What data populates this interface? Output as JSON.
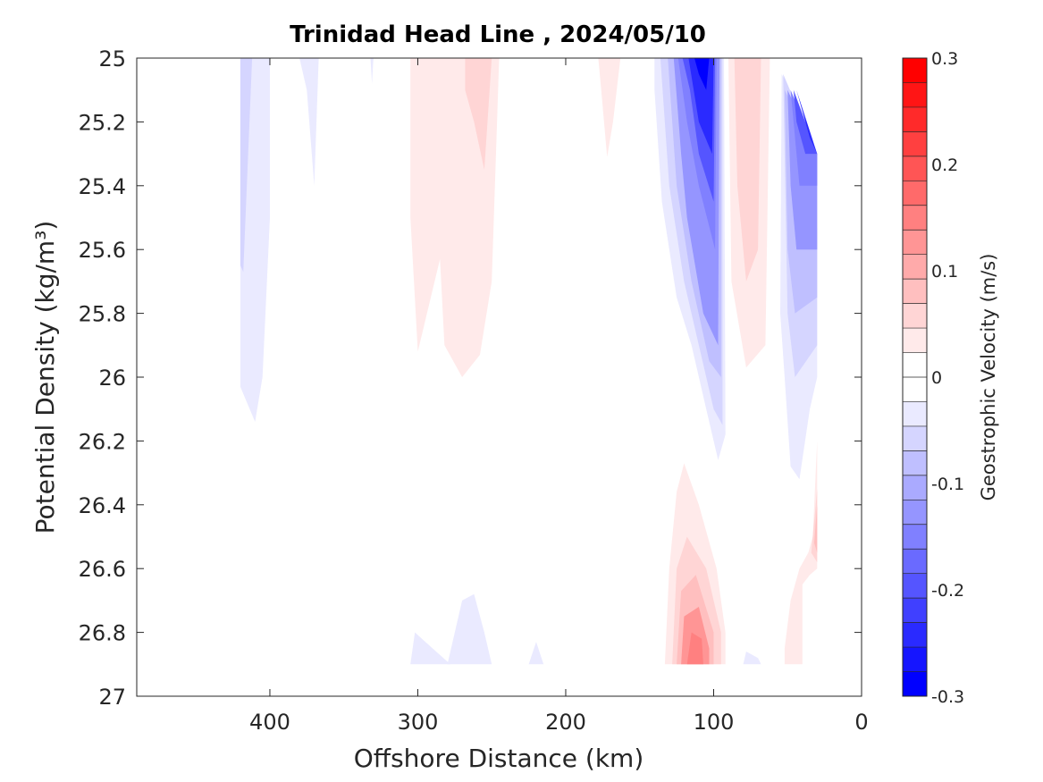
{
  "chart_data": {
    "type": "contour",
    "title": "Trinidad Head Line , 2024/05/10",
    "xlabel": "Offshore Distance (km)",
    "ylabel": "Potential Density (kg/m³)",
    "colorbar_label": "Geostrophic Velocity (m/s)",
    "x_reversed": true,
    "y_reversed": true,
    "xlim": [
      490,
      0
    ],
    "ylim": [
      25,
      27
    ],
    "x_ticks": [
      400,
      300,
      200,
      100,
      0
    ],
    "x_tick_labels": [
      "400",
      "300",
      "200",
      "100",
      "0"
    ],
    "y_ticks": [
      25,
      25.2,
      25.4,
      25.6,
      25.8,
      26,
      26.2,
      26.4,
      26.6,
      26.8,
      27
    ],
    "y_tick_labels": [
      "25",
      "25.2",
      "25.4",
      "25.6",
      "25.8",
      "26",
      "26.2",
      "26.4",
      "26.6",
      "26.8",
      "27"
    ],
    "colorbar": {
      "range": [
        -0.3,
        0.3
      ],
      "step": 0.025,
      "ticks": [
        0.3,
        0.2,
        0.1,
        0,
        -0.1,
        -0.2,
        -0.3
      ],
      "tick_labels": [
        "0.3",
        "0.2",
        "0.1",
        "0",
        "-0.1",
        "-0.2",
        "-0.3"
      ],
      "colors_top_to_bottom": [
        "#ff0000",
        "#ff1515",
        "#ff2a2a",
        "#ff4040",
        "#ff5555",
        "#ff6a6a",
        "#ff8080",
        "#ff9595",
        "#ffaaaa",
        "#ffbfbf",
        "#ffd5d5",
        "#ffeaea",
        "#ffffff",
        "#ffffff",
        "#eaeaff",
        "#d5d5ff",
        "#bfbfff",
        "#aaaaff",
        "#9595ff",
        "#8080ff",
        "#6a6aff",
        "#5555ff",
        "#4040ff",
        "#2a2aff",
        "#1515ff",
        "#0000ff"
      ]
    },
    "regions": [
      {
        "v": -0.04,
        "poly": [
          [
            420,
            25
          ],
          [
            400,
            25
          ],
          [
            400,
            25.5
          ],
          [
            405,
            26.0
          ],
          [
            410,
            26.14
          ],
          [
            420,
            26.03
          ]
        ]
      },
      {
        "v": -0.06,
        "poly": [
          [
            420,
            25
          ],
          [
            412,
            25
          ],
          [
            418,
            25.67
          ],
          [
            420,
            25.65
          ]
        ]
      },
      {
        "v": -0.04,
        "poly": [
          [
            380,
            25
          ],
          [
            367,
            25
          ],
          [
            370,
            25.4
          ],
          [
            375,
            25.1
          ]
        ]
      },
      {
        "v": -0.04,
        "poly": [
          [
            332,
            25
          ],
          [
            330,
            25
          ],
          [
            331,
            25.08
          ]
        ]
      },
      {
        "v": 0.04,
        "poly": [
          [
            305,
            25
          ],
          [
            245,
            25
          ],
          [
            250,
            25.7
          ],
          [
            258,
            25.93
          ],
          [
            270,
            26.0
          ],
          [
            282,
            25.9
          ],
          [
            285,
            25.63
          ],
          [
            300,
            25.92
          ],
          [
            305,
            25.5
          ]
        ]
      },
      {
        "v": 0.06,
        "poly": [
          [
            268,
            25
          ],
          [
            250,
            25
          ],
          [
            255,
            25.35
          ],
          [
            262,
            25.2
          ],
          [
            268,
            25.1
          ]
        ]
      },
      {
        "v": 0.04,
        "poly": [
          [
            178,
            25
          ],
          [
            163,
            25
          ],
          [
            168,
            25.2
          ],
          [
            172,
            25.31
          ],
          [
            176,
            25.1
          ]
        ]
      },
      {
        "v": -0.04,
        "poly": [
          [
            140,
            25
          ],
          [
            93,
            25
          ],
          [
            92,
            26.18
          ],
          [
            97,
            26.26
          ],
          [
            105,
            26.1
          ],
          [
            115,
            25.9
          ],
          [
            125,
            25.75
          ],
          [
            135,
            25.45
          ],
          [
            140,
            25.1
          ]
        ]
      },
      {
        "v": -0.06,
        "poly": [
          [
            136,
            25
          ],
          [
            94,
            25
          ],
          [
            94,
            26.15
          ],
          [
            100,
            26.1
          ],
          [
            110,
            25.9
          ],
          [
            120,
            25.7
          ],
          [
            130,
            25.4
          ]
        ]
      },
      {
        "v": -0.09,
        "poly": [
          [
            131,
            25
          ],
          [
            95,
            25
          ],
          [
            95,
            26.0
          ],
          [
            103,
            25.95
          ],
          [
            115,
            25.7
          ],
          [
            125,
            25.4
          ]
        ]
      },
      {
        "v": -0.12,
        "poly": [
          [
            127,
            25
          ],
          [
            96,
            25
          ],
          [
            97,
            25.9
          ],
          [
            107,
            25.8
          ],
          [
            118,
            25.5
          ],
          [
            122,
            25.3
          ]
        ]
      },
      {
        "v": -0.16,
        "poly": [
          [
            124,
            25
          ],
          [
            98,
            25
          ],
          [
            99,
            25.6
          ],
          [
            110,
            25.4
          ],
          [
            118,
            25.2
          ]
        ]
      },
      {
        "v": -0.2,
        "poly": [
          [
            121,
            25
          ],
          [
            99,
            25
          ],
          [
            100,
            25.45
          ],
          [
            110,
            25.3
          ],
          [
            116,
            25.1
          ]
        ]
      },
      {
        "v": -0.24,
        "poly": [
          [
            117,
            25
          ],
          [
            100,
            25
          ],
          [
            101,
            25.3
          ],
          [
            110,
            25.2
          ]
        ]
      },
      {
        "v": -0.28,
        "poly": [
          [
            113,
            25
          ],
          [
            103,
            25
          ],
          [
            105,
            25.1
          ],
          [
            110,
            25.05
          ]
        ]
      },
      {
        "v": 0.04,
        "poly": [
          [
            90,
            25
          ],
          [
            62,
            25
          ],
          [
            65,
            25.9
          ],
          [
            78,
            25.97
          ],
          [
            88,
            25.7
          ]
        ]
      },
      {
        "v": 0.06,
        "poly": [
          [
            86,
            25
          ],
          [
            68,
            25
          ],
          [
            70,
            25.6
          ],
          [
            78,
            25.7
          ],
          [
            84,
            25.4
          ]
        ]
      },
      {
        "v": -0.04,
        "poly": [
          [
            54,
            25.05
          ],
          [
            30,
            25.3
          ],
          [
            30,
            26.0
          ],
          [
            35,
            26.1
          ],
          [
            42,
            26.32
          ],
          [
            48,
            26.28
          ],
          [
            52,
            26.0
          ],
          [
            55,
            25.8
          ]
        ]
      },
      {
        "v": -0.06,
        "poly": [
          [
            53,
            25.05
          ],
          [
            30,
            25.3
          ],
          [
            30,
            25.9
          ],
          [
            45,
            26.0
          ],
          [
            50,
            25.8
          ]
        ]
      },
      {
        "v": -0.09,
        "poly": [
          [
            52,
            25.1
          ],
          [
            30,
            25.3
          ],
          [
            30,
            25.75
          ],
          [
            45,
            25.8
          ],
          [
            50,
            25.6
          ]
        ]
      },
      {
        "v": -0.12,
        "poly": [
          [
            50,
            25.1
          ],
          [
            30,
            25.3
          ],
          [
            30,
            25.6
          ],
          [
            44,
            25.6
          ],
          [
            48,
            25.4
          ]
        ]
      },
      {
        "v": -0.16,
        "poly": [
          [
            48,
            25.1
          ],
          [
            30,
            25.3
          ],
          [
            30,
            25.4
          ],
          [
            42,
            25.4
          ],
          [
            46,
            25.2
          ]
        ]
      },
      {
        "v": -0.2,
        "poly": [
          [
            46,
            25.1
          ],
          [
            30,
            25.3
          ],
          [
            38,
            25.3
          ],
          [
            44,
            25.2
          ]
        ]
      },
      {
        "v": -0.24,
        "poly": [
          [
            44,
            25.1
          ],
          [
            30,
            25.3
          ],
          [
            35,
            25.25
          ]
        ]
      },
      {
        "v": 0.04,
        "poly": [
          [
            30,
            26.2
          ],
          [
            33,
            26.5
          ],
          [
            36,
            26.55
          ],
          [
            42,
            26.6
          ],
          [
            48,
            26.7
          ],
          [
            52,
            26.85
          ],
          [
            52,
            26.9
          ],
          [
            40,
            26.9
          ],
          [
            40,
            26.65
          ],
          [
            35,
            26.62
          ],
          [
            30,
            26.6
          ]
        ]
      },
      {
        "v": 0.06,
        "poly": [
          [
            30,
            26.35
          ],
          [
            34,
            26.55
          ],
          [
            30,
            26.58
          ]
        ]
      },
      {
        "v": 0.08,
        "poly": [
          [
            30,
            26.4
          ],
          [
            32,
            26.52
          ],
          [
            30,
            26.55
          ]
        ]
      },
      {
        "v": -0.04,
        "poly": [
          [
            305,
            26.9
          ],
          [
            302,
            26.8
          ],
          [
            290,
            26.85
          ],
          [
            278,
            26.9
          ]
        ]
      },
      {
        "v": -0.04,
        "poly": [
          [
            280,
            26.9
          ],
          [
            270,
            26.7
          ],
          [
            262,
            26.68
          ],
          [
            255,
            26.8
          ],
          [
            250,
            26.9
          ]
        ]
      },
      {
        "v": -0.04,
        "poly": [
          [
            225,
            26.9
          ],
          [
            220,
            26.83
          ],
          [
            215,
            26.9
          ]
        ]
      },
      {
        "v": 0.04,
        "poly": [
          [
            133,
            26.9
          ],
          [
            130,
            26.6
          ],
          [
            125,
            26.36
          ],
          [
            120,
            26.27
          ],
          [
            110,
            26.4
          ],
          [
            98,
            26.6
          ],
          [
            92,
            26.8
          ],
          [
            92,
            26.9
          ]
        ]
      },
      {
        "v": 0.06,
        "poly": [
          [
            128,
            26.9
          ],
          [
            125,
            26.6
          ],
          [
            118,
            26.5
          ],
          [
            105,
            26.6
          ],
          [
            95,
            26.8
          ],
          [
            95,
            26.9
          ]
        ]
      },
      {
        "v": 0.09,
        "poly": [
          [
            125,
            26.9
          ],
          [
            122,
            26.67
          ],
          [
            112,
            26.62
          ],
          [
            100,
            26.8
          ],
          [
            100,
            26.9
          ]
        ]
      },
      {
        "v": 0.12,
        "poly": [
          [
            122,
            26.9
          ],
          [
            120,
            26.75
          ],
          [
            110,
            26.72
          ],
          [
            103,
            26.85
          ],
          [
            103,
            26.9
          ]
        ]
      },
      {
        "v": 0.16,
        "poly": [
          [
            118,
            26.9
          ],
          [
            115,
            26.8
          ],
          [
            108,
            26.82
          ],
          [
            107,
            26.9
          ]
        ]
      },
      {
        "v": -0.04,
        "poly": [
          [
            80,
            26.9
          ],
          [
            78,
            26.86
          ],
          [
            70,
            26.88
          ],
          [
            68,
            26.9
          ]
        ]
      }
    ]
  }
}
